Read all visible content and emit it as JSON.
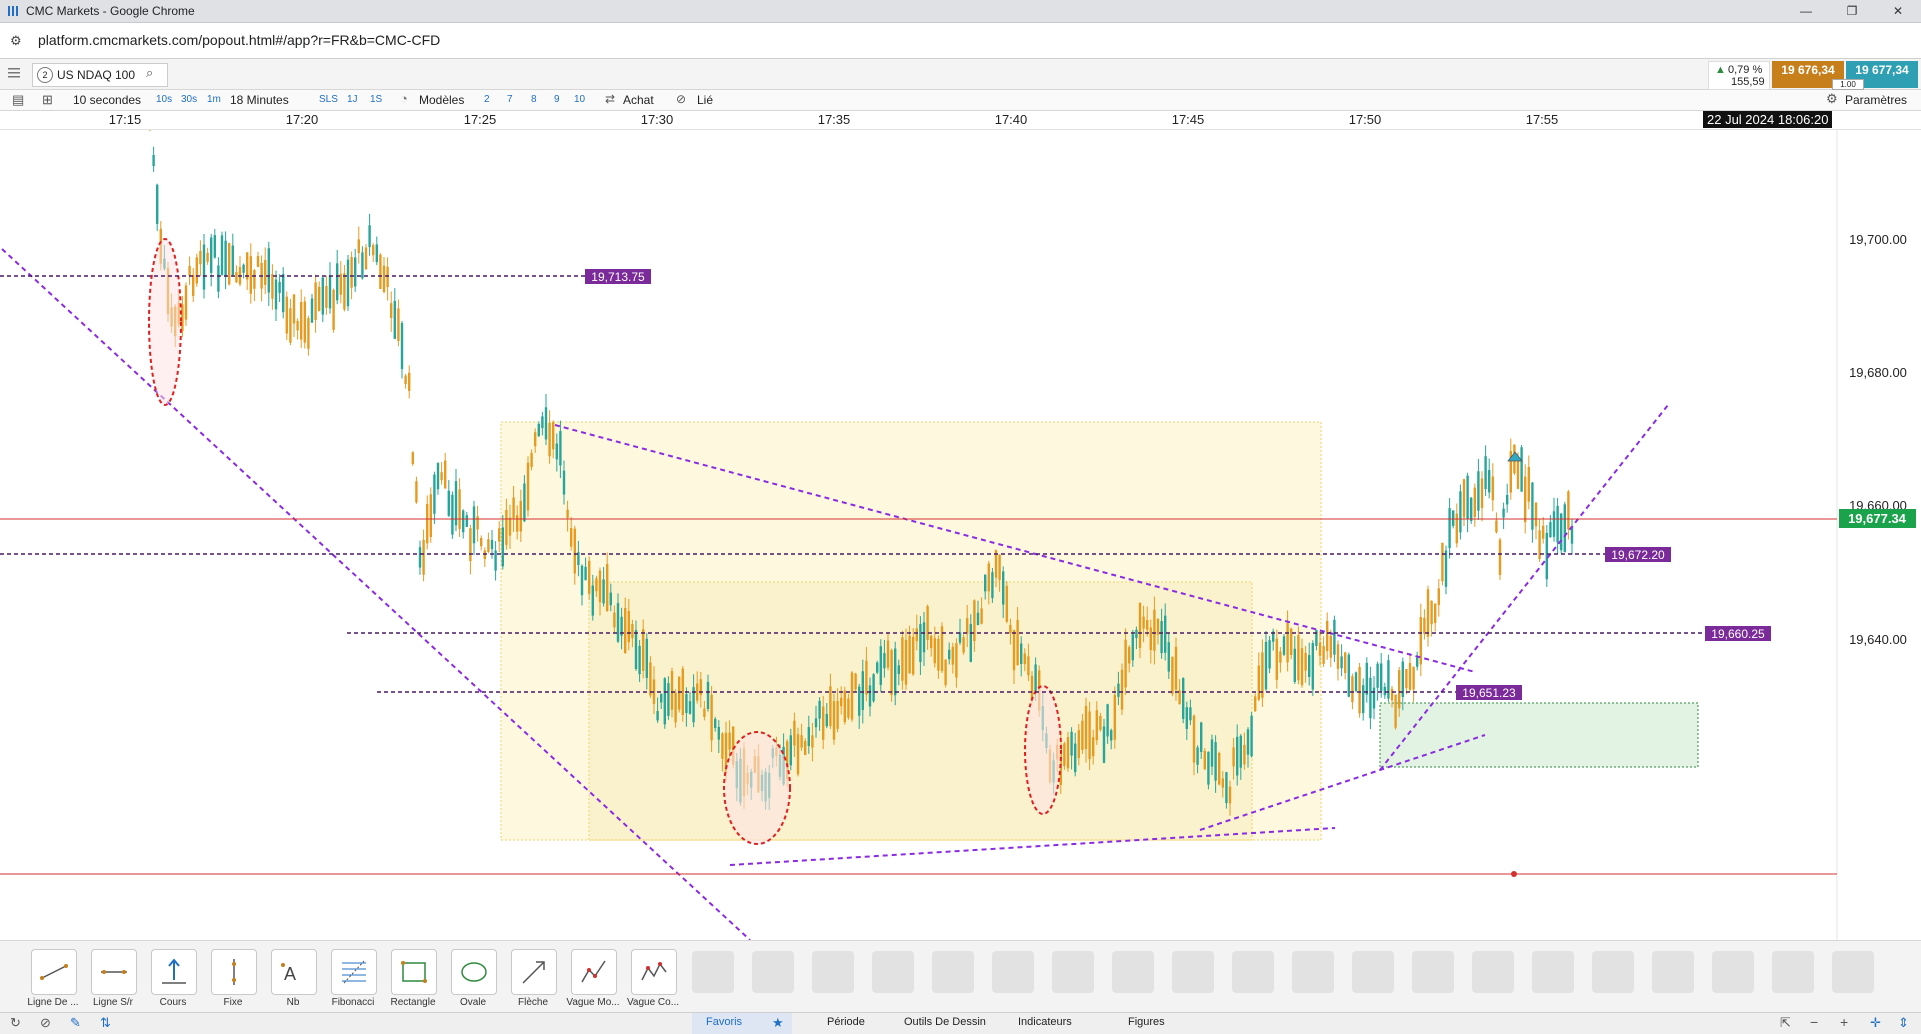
{
  "window": {
    "title": "CMC Markets - Google Chrome",
    "url": "platform.cmcmarkets.com/popout.html#/app?r=FR&b=CMC-CFD",
    "controls": [
      "—",
      "❐",
      "✕"
    ]
  },
  "header": {
    "tab_number": "2",
    "instrument": "US NDAQ 100",
    "change_pct": "0,79 %",
    "change_pts": "155,59",
    "sell_price": "19 676,34",
    "buy_price": "19 677,34",
    "spread": "1.00"
  },
  "toolbar": {
    "interval_value": "10 secondes",
    "interval_buttons": [
      "10s",
      "30s",
      "1m"
    ],
    "duration_value": "18 Minutes",
    "duration_buttons": [
      "SLS",
      "1J",
      "1S"
    ],
    "models_label": "Modèles",
    "model_buttons": [
      "2",
      "7",
      "8",
      "9",
      "10"
    ],
    "buy_label": "Achat",
    "link_label": "Lié",
    "settings_label": "Paramètres"
  },
  "time_axis": {
    "labels": [
      "17:15",
      "17:20",
      "17:25",
      "17:30",
      "17:35",
      "17:40",
      "17:45",
      "17:50",
      "17:55"
    ],
    "current_datetime": "22 Jul 2024 18:06:20"
  },
  "price_axis": {
    "labels": [
      "19,700.00",
      "19,680.00",
      "19,660.00",
      "19,640.00"
    ],
    "current_price": "19,677.34"
  },
  "levels": [
    {
      "label": "19,713.75",
      "value": 19713.75
    },
    {
      "label": "19,672.20",
      "value": 19672.2
    },
    {
      "label": "19,660.25",
      "value": 19660.25
    },
    {
      "label": "19,651.23",
      "value": 19651.23
    }
  ],
  "colors": {
    "bull": "#26a69a",
    "bear": "#e69a1e",
    "level_label": "#7b2a9a",
    "price_line": "#d32f2f",
    "current_price_tag": "#1aa34a",
    "trendline": "#8a2be2",
    "sell_bg": "#c77f1c",
    "buy_bg": "#2f9fb3"
  },
  "drawing_tools": [
    {
      "label": "Ligne De ...",
      "icon": "line-icon"
    },
    {
      "label": "Ligne S/r",
      "icon": "sr-line-icon"
    },
    {
      "label": "Cours",
      "icon": "price-icon"
    },
    {
      "label": "Fixe",
      "icon": "vertical-line-icon"
    },
    {
      "label": "Nb",
      "icon": "text-icon"
    },
    {
      "label": "Fibonacci",
      "icon": "fibonacci-icon"
    },
    {
      "label": "Rectangle",
      "icon": "rectangle-icon"
    },
    {
      "label": "Ovale",
      "icon": "oval-icon"
    },
    {
      "label": "Flèche",
      "icon": "arrow-icon"
    },
    {
      "label": "Vague Mo...",
      "icon": "wave-icon"
    },
    {
      "label": "Vague Co...",
      "icon": "wave-corrective-icon"
    }
  ],
  "bottom_tabs": [
    "Favoris",
    "Période",
    "Outils De Dessin",
    "Indicateurs",
    "Figures"
  ],
  "bottom_controls": [
    "−",
    "+"
  ]
}
